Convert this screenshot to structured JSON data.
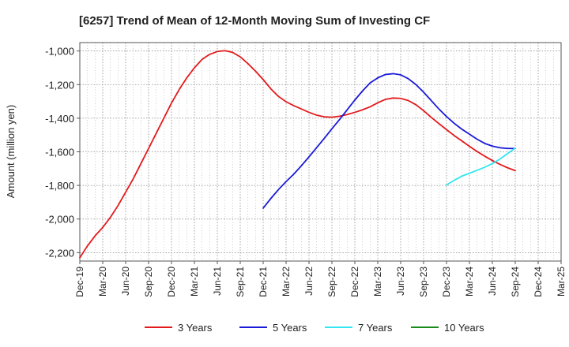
{
  "chart_data": {
    "type": "line",
    "title": "[6257]  Trend of Mean of 12-Month Moving Sum of Investing CF",
    "xlabel": "",
    "ylabel": "Amount (million yen)",
    "ylim": [
      -2250,
      -950
    ],
    "yticks": [
      -1000,
      -1200,
      -1400,
      -1600,
      -1800,
      -2000,
      -2200
    ],
    "ytick_labels": [
      "-1,000",
      "-1,200",
      "-1,400",
      "-1,600",
      "-1,800",
      "-2,000",
      "-2,200"
    ],
    "x_categories": [
      "Dec-19",
      "Mar-20",
      "Jun-20",
      "Sep-20",
      "Dec-20",
      "Mar-21",
      "Jun-21",
      "Sep-21",
      "Dec-21",
      "Mar-22",
      "Jun-22",
      "Sep-22",
      "Dec-22",
      "Mar-23",
      "Jun-23",
      "Sep-23",
      "Dec-23",
      "Mar-24",
      "Jun-24",
      "Sep-24",
      "Dec-24",
      "Mar-25"
    ],
    "x_unit": "months since Dec-19",
    "xlim": [
      0,
      63
    ],
    "grid": true,
    "legend_position": "bottom",
    "series": [
      {
        "name": "3 Years",
        "color": "#e31a1c",
        "x": [
          0,
          1,
          2,
          3,
          4,
          5,
          6,
          7,
          8,
          9,
          10,
          11,
          12,
          13,
          14,
          15,
          16,
          17,
          18,
          19,
          20,
          21,
          22,
          23,
          24,
          25,
          26,
          27,
          28,
          29,
          30,
          31,
          32,
          33,
          34,
          35,
          36,
          37,
          38,
          39,
          40,
          41,
          42,
          43,
          44,
          45,
          46,
          47,
          48,
          49,
          50,
          51,
          52,
          53,
          54,
          55,
          56,
          57
        ],
        "values": [
          -2230,
          -2160,
          -2100,
          -2050,
          -1990,
          -1920,
          -1840,
          -1760,
          -1670,
          -1580,
          -1490,
          -1400,
          -1310,
          -1230,
          -1160,
          -1100,
          -1050,
          -1020,
          -1003,
          -998,
          -1008,
          -1035,
          -1075,
          -1120,
          -1170,
          -1225,
          -1270,
          -1302,
          -1325,
          -1345,
          -1365,
          -1382,
          -1392,
          -1394,
          -1388,
          -1378,
          -1365,
          -1350,
          -1332,
          -1308,
          -1288,
          -1280,
          -1282,
          -1295,
          -1320,
          -1355,
          -1395,
          -1432,
          -1468,
          -1503,
          -1535,
          -1567,
          -1598,
          -1626,
          -1652,
          -1675,
          -1695,
          -1712
        ]
      },
      {
        "name": "5 Years",
        "color": "#1a1ad8",
        "x": [
          24,
          25,
          26,
          27,
          28,
          29,
          30,
          31,
          32,
          33,
          34,
          35,
          36,
          37,
          38,
          39,
          40,
          41,
          42,
          43,
          44,
          45,
          46,
          47,
          48,
          49,
          50,
          51,
          52,
          53,
          54,
          55,
          56,
          57
        ],
        "values": [
          -1935,
          -1878,
          -1825,
          -1777,
          -1733,
          -1683,
          -1630,
          -1575,
          -1520,
          -1463,
          -1408,
          -1350,
          -1292,
          -1238,
          -1190,
          -1160,
          -1140,
          -1135,
          -1142,
          -1165,
          -1200,
          -1245,
          -1295,
          -1345,
          -1390,
          -1430,
          -1465,
          -1495,
          -1525,
          -1550,
          -1566,
          -1576,
          -1580,
          -1580
        ]
      },
      {
        "name": "7 Years",
        "color": "#33e6f0",
        "x": [
          48,
          49,
          50,
          51,
          52,
          53,
          54,
          55,
          56,
          57
        ],
        "values": [
          -1797,
          -1770,
          -1745,
          -1728,
          -1710,
          -1692,
          -1670,
          -1643,
          -1610,
          -1578
        ]
      },
      {
        "name": "10 Years",
        "color": "#1a8a1a",
        "x": [],
        "values": []
      }
    ]
  }
}
